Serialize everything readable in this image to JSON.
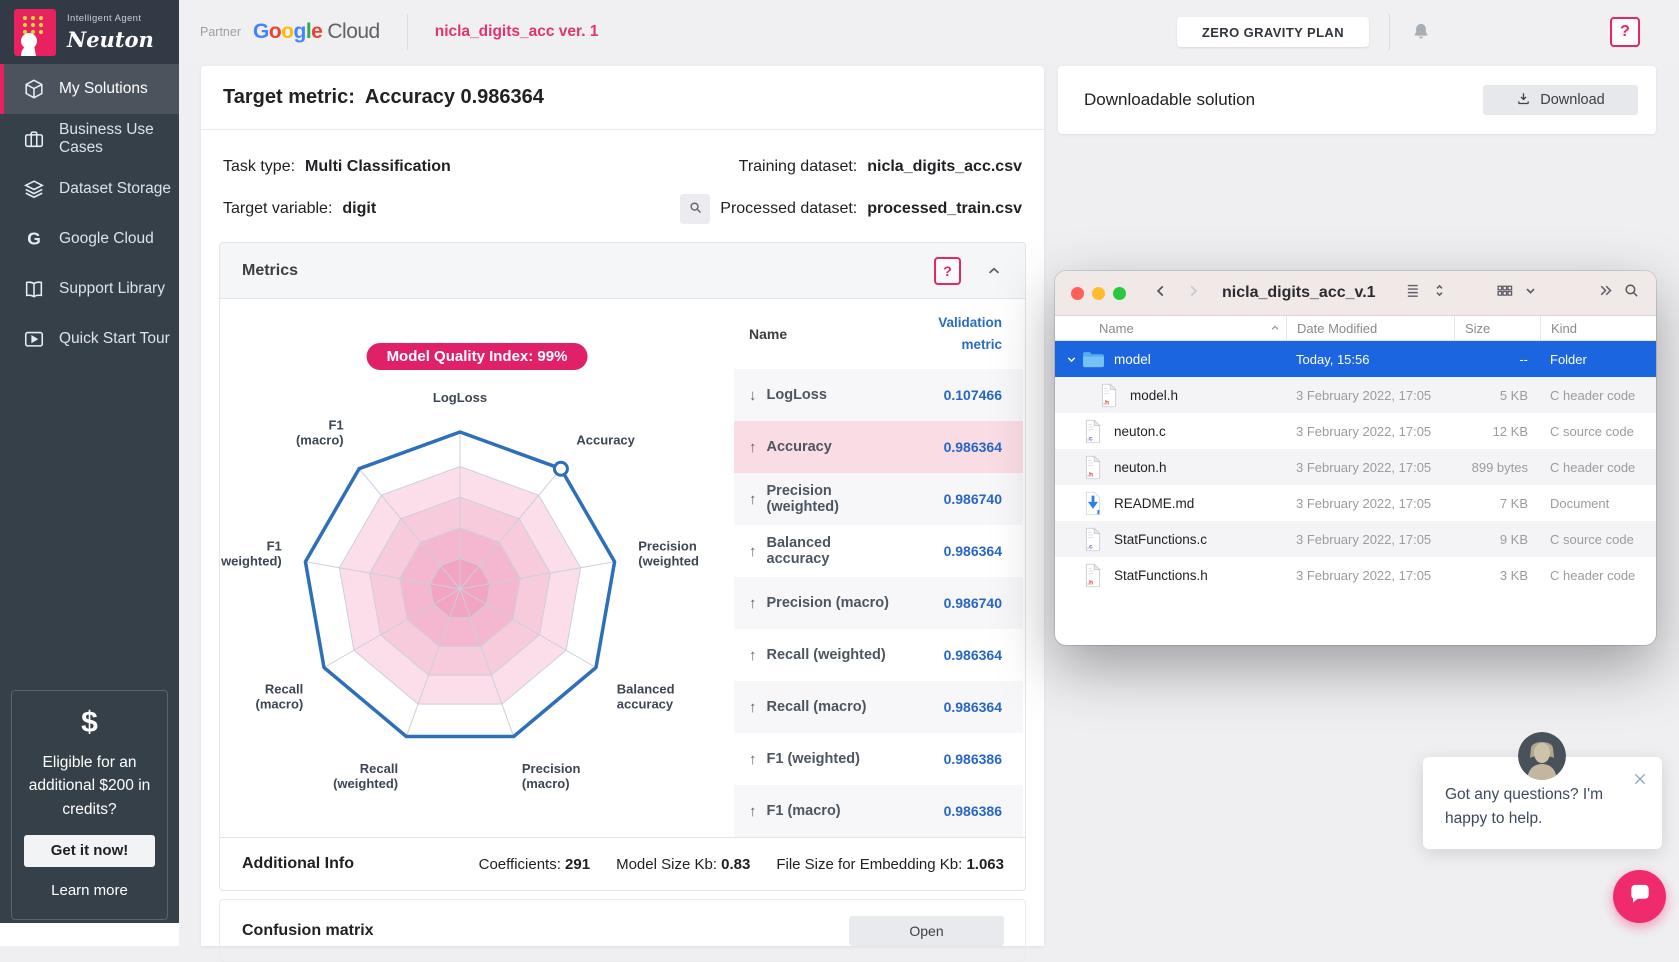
{
  "logo": {
    "tagline": "Intelligent Agent",
    "name": "Neuton"
  },
  "header": {
    "partner_label": "Partner",
    "google_word": "Google",
    "google_colors": [
      "#4285F4",
      "#EA4335",
      "#FBBC05",
      "#4285F4",
      "#34A853",
      "#EA4335"
    ],
    "cloud_word": "Cloud",
    "project_title": "nicla_digits_acc ver. 1",
    "plan_button": "ZERO GRAVITY PLAN",
    "help_glyph": "?"
  },
  "sidebar": {
    "items": [
      {
        "label": "My Solutions",
        "icon": "cube",
        "active": true
      },
      {
        "label": "Business Use Cases",
        "icon": "briefcase",
        "active": false
      },
      {
        "label": "Dataset Storage",
        "icon": "layers",
        "active": false
      },
      {
        "label": "Google Cloud",
        "icon": "g-letter",
        "active": false
      },
      {
        "label": "Support Library",
        "icon": "book",
        "active": false
      },
      {
        "label": "Quick Start Tour",
        "icon": "play",
        "active": false
      }
    ],
    "promo": {
      "dollar": "$",
      "text": "Eligible for an additional $200 in credits?",
      "cta": "Get it now!",
      "link": "Learn more"
    }
  },
  "solution": {
    "target_metric_label": "Target metric:",
    "target_metric_value": "Accuracy 0.986364",
    "task_type_label": "Task type:",
    "task_type_value": "Multi Classification",
    "target_variable_label": "Target variable:",
    "target_variable_value": "digit",
    "training_dataset_label": "Training dataset:",
    "training_dataset_value": "nicla_digits_acc.csv",
    "processed_dataset_label": "Processed dataset:",
    "processed_dataset_value": "processed_train.csv"
  },
  "metrics_panel": {
    "title": "Metrics",
    "help_glyph": "?",
    "columns": {
      "name": "Name",
      "value": "Validation metric"
    },
    "rows": [
      {
        "direction": "down",
        "name": "LogLoss",
        "value": "0.107466",
        "bg": "gray"
      },
      {
        "direction": "up",
        "name": "Accuracy",
        "value": "0.986364",
        "bg": "pink"
      },
      {
        "direction": "up",
        "name": "Precision (weighted)",
        "value": "0.986740",
        "bg": "gray"
      },
      {
        "direction": "up",
        "name": "Balanced accuracy",
        "value": "0.986364",
        "bg": "white"
      },
      {
        "direction": "up",
        "name": "Precision (macro)",
        "value": "0.986740",
        "bg": "gray"
      },
      {
        "direction": "up",
        "name": "Recall (weighted)",
        "value": "0.986364",
        "bg": "white"
      },
      {
        "direction": "up",
        "name": "Recall (macro)",
        "value": "0.986364",
        "bg": "gray"
      },
      {
        "direction": "up",
        "name": "F1 (weighted)",
        "value": "0.986386",
        "bg": "white"
      },
      {
        "direction": "up",
        "name": "F1 (macro)",
        "value": "0.986386",
        "bg": "gray"
      }
    ],
    "additional_info": {
      "title": "Additional Info",
      "items": [
        {
          "label": "Coefficients:",
          "value": "291"
        },
        {
          "label": "Model Size Kb:",
          "value": "0.83"
        },
        {
          "label": "File Size for Embedding Kb:",
          "value": "1.063"
        }
      ]
    }
  },
  "confusion": {
    "title": "Confusion matrix",
    "button": "Open"
  },
  "download": {
    "title": "Downloadable solution",
    "button": "Download"
  },
  "finder": {
    "title": "nicla_digits_acc_v.1",
    "columns": [
      "Name",
      "Date Modified",
      "Size",
      "Kind"
    ],
    "rows": [
      {
        "name": "model",
        "date": "Today, 15:56",
        "size": "--",
        "kind": "Folder",
        "icon": "folder",
        "selected": true,
        "expanded": true,
        "indent": 0,
        "shade": false
      },
      {
        "name": "model.h",
        "date": "3 February 2022, 17:05",
        "size": "5 KB",
        "kind": "C header code",
        "icon": "file-h",
        "selected": false,
        "expanded": false,
        "indent": 1,
        "shade": true
      },
      {
        "name": "neuton.c",
        "date": "3 February 2022, 17:05",
        "size": "12 KB",
        "kind": "C source code",
        "icon": "file-c",
        "selected": false,
        "expanded": false,
        "indent": 0,
        "shade": false
      },
      {
        "name": "neuton.h",
        "date": "3 February 2022, 17:05",
        "size": "899 bytes",
        "kind": "C header code",
        "icon": "file-h",
        "selected": false,
        "expanded": false,
        "indent": 0,
        "shade": true
      },
      {
        "name": "README.md",
        "date": "3 February 2022, 17:05",
        "size": "7 KB",
        "kind": "Document",
        "icon": "file-readme",
        "selected": false,
        "expanded": false,
        "indent": 0,
        "shade": false
      },
      {
        "name": "StatFunctions.c",
        "date": "3 February 2022, 17:05",
        "size": "9 KB",
        "kind": "C source code",
        "icon": "file-c",
        "selected": false,
        "expanded": false,
        "indent": 0,
        "shade": true
      },
      {
        "name": "StatFunctions.h",
        "date": "3 February 2022, 17:05",
        "size": "3 KB",
        "kind": "C header code",
        "icon": "file-h",
        "selected": false,
        "expanded": false,
        "indent": 0,
        "shade": false
      }
    ]
  },
  "chat": {
    "message": "Got any questions? I'm happy to help."
  },
  "chart_data": {
    "type": "radar",
    "badge": "Model Quality Index: 99%",
    "axes": [
      "LogLoss",
      "Accuracy",
      "Precision\n(weighted",
      "Balanced\naccuracy",
      "Precision\n(macro)",
      "Recall\n(weighted)",
      "Recall\n(macro)",
      "F1\nweighted)",
      "F1\n(macro)"
    ],
    "values": [
      1,
      1,
      1,
      1,
      1,
      1,
      1,
      1,
      1
    ],
    "marker_axis_index": 1,
    "grid_levels": [
      0.195,
      0.39,
      0.585,
      0.78,
      1.0
    ],
    "band_colors": [
      "#f2a4c2",
      "#f5b7cf",
      "#f8cbdc",
      "#fbdee9"
    ],
    "line_color": "#2e6fb7",
    "grid_color": "#c9d0dd"
  }
}
